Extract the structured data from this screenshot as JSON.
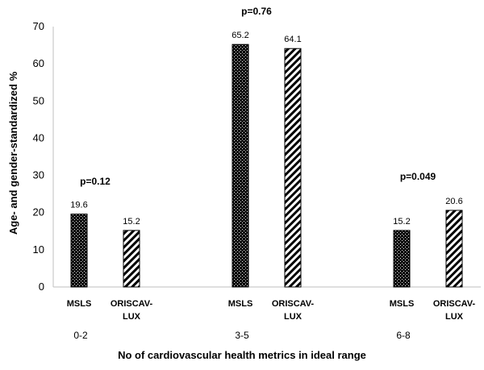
{
  "chart_data": {
    "type": "bar",
    "title": "",
    "xlabel": "No of cardiovascular health metrics in ideal range",
    "ylabel": "Age- and gender-standardized %",
    "ylim": [
      0,
      70
    ],
    "yticks": [
      0,
      10,
      20,
      30,
      40,
      50,
      60,
      70
    ],
    "grid": false,
    "legend": "none",
    "categories": [
      "0-2",
      "3-5",
      "6-8"
    ],
    "series": [
      {
        "name": "MSLS",
        "values": [
          19.6,
          65.2,
          15.2
        ],
        "pattern": "dotted-dark"
      },
      {
        "name": "ORISCAV-LUX",
        "values": [
          15.2,
          64.1,
          20.6
        ],
        "pattern": "diagonal-stripes"
      }
    ],
    "series_label_lines": [
      [
        "MSLS"
      ],
      [
        "ORISCAV-",
        "LUX"
      ]
    ],
    "group_annotations": [
      "p=0.12",
      "p=0.76",
      "p=0.049"
    ],
    "colors": {
      "bar_stroke": "#000000",
      "bar_fill_dark": "#000000",
      "axis": "#bfbfbf",
      "text": "#000000"
    }
  }
}
